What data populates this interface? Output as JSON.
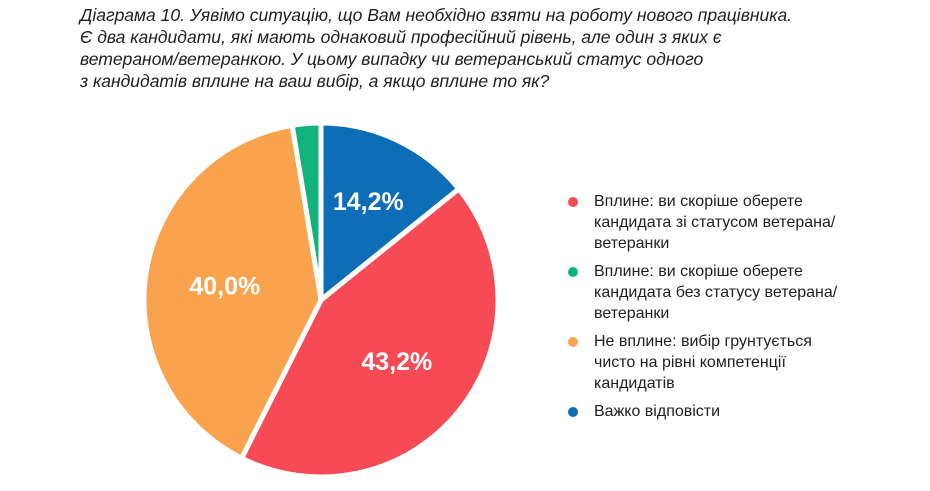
{
  "title_lines": [
    "Діаграма 10. Уявімо ситуацію, що Вам необхідно взяти на роботу нового працівника.",
    "Є два кандидати, які мають однаковий професійний рівень, але один з яких є",
    "ветераном/ветеранкою. У цьому випадку чи ветеранський статус одного",
    "з кандидатів вплине на ваш вибір, а якщо вплине то як?"
  ],
  "chart_data": {
    "type": "pie",
    "title": "Діаграма 10. Уявімо ситуацію, що Вам необхідно взяти на роботу нового працівника. Є два кандидати, які мають однаковий професійний рівень, але один з яких є ветераном/ветеранкою. У цьому випадку чи ветеранський статус одного з кандидатів вплине на ваш вибір, а якщо вплине то як?",
    "categories": [
      "Вплине: ви скоріше оберете кандидата зі статусом ветерана/ ветеранки",
      "Вплине: ви скоріше оберете кандидата без статусу ветерана/ ветеранки",
      "Не вплине: вибір грунтується чисто на рівні компетенції кандидатів",
      "Важко відповісти"
    ],
    "values": [
      43.2,
      2.6,
      40.0,
      14.2
    ],
    "data_labels": [
      "43,2%",
      "",
      "40,0%",
      "14,2%"
    ],
    "colors": [
      "#f64a54",
      "#11b37c",
      "#f9a34e",
      "#0d6db6"
    ],
    "legend_position": "right"
  },
  "legend": [
    {
      "lines": [
        "Вплине: ви скоріше оберете",
        "кандидата зі статусом ветерана/",
        "ветеранки"
      ],
      "color": "#f64a54"
    },
    {
      "lines": [
        "Вплине: ви скоріше оберете",
        "кандидата без статусу ветерана/",
        "ветеранки"
      ],
      "color": "#11b37c"
    },
    {
      "lines": [
        "Не вплине: вибір грунтується",
        "чисто на рівні компетенції",
        "кандидатів"
      ],
      "color": "#f9a34e"
    },
    {
      "lines": [
        "Важко відповісти"
      ],
      "color": "#0d6db6"
    }
  ]
}
